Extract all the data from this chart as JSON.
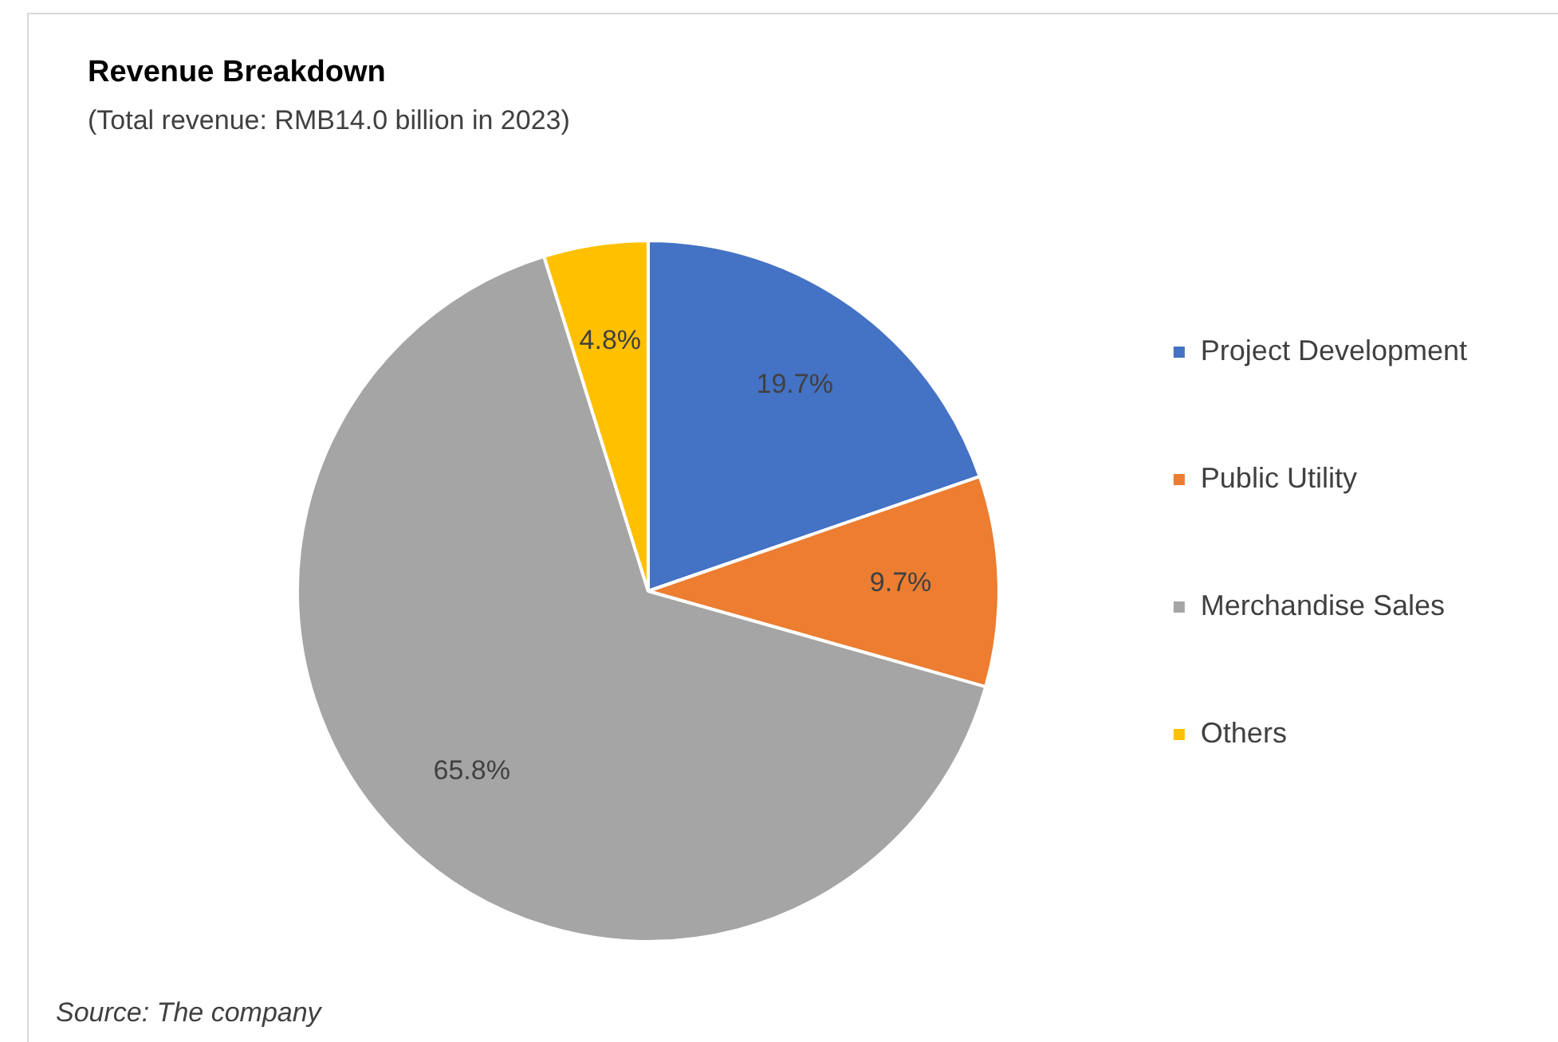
{
  "chart_data": {
    "type": "pie",
    "title": "Revenue Breakdown",
    "subtitle": "(Total revenue: RMB14.0 billion in 2023)",
    "categories": [
      "Project Development",
      "Public Utility",
      "Merchandise Sales",
      "Others"
    ],
    "values": [
      19.7,
      9.7,
      65.8,
      4.8
    ],
    "colors": [
      "#4472c4",
      "#ed7d31",
      "#a5a5a5",
      "#ffc000"
    ],
    "value_labels": [
      "19.7%",
      "9.7%",
      "65.8%",
      "4.8%"
    ],
    "legend": "right",
    "annotations": [
      "Source: The company"
    ]
  }
}
